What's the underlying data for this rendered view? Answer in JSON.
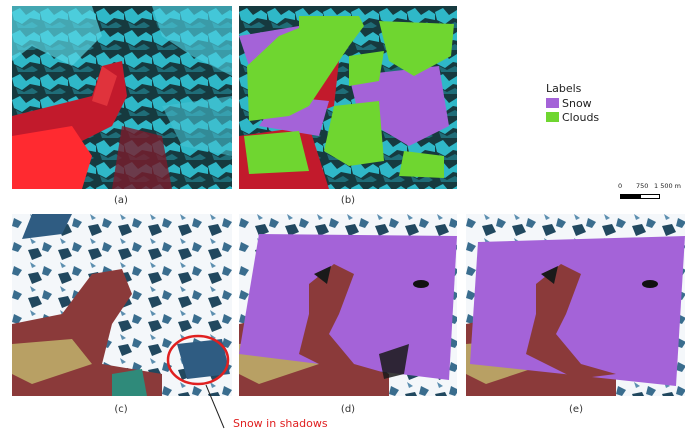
{
  "captions": [
    "(a)",
    "(b)",
    "(c)",
    "(d)",
    "(e)"
  ],
  "legend": {
    "title": "Labels",
    "items": [
      {
        "label": "Snow",
        "color": "#a463d8"
      },
      {
        "label": "Clouds",
        "color": "#6fd630"
      }
    ]
  },
  "scalebar": {
    "ticks": [
      "0",
      "750",
      "1 500 m"
    ]
  },
  "annotation": {
    "text": "Snow in shadows",
    "color": "#e02020"
  }
}
